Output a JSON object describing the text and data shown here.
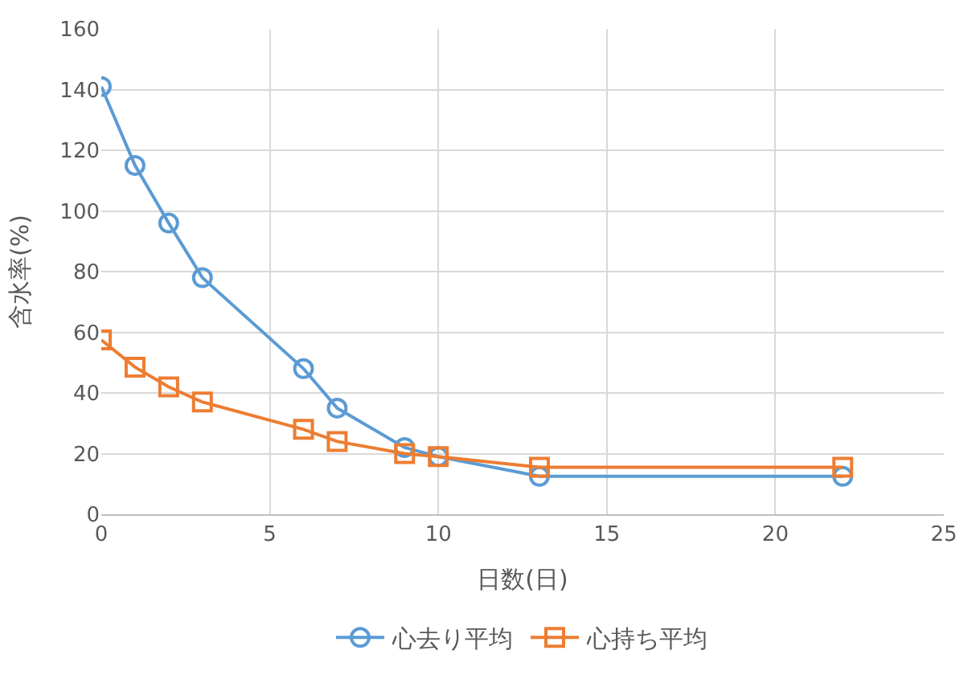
{
  "chart_data": {
    "type": "line",
    "xlabel": "日数(日)",
    "ylabel": "含水率(%)",
    "xlim": [
      0,
      25
    ],
    "xticks": [
      0,
      5,
      10,
      15,
      20,
      25
    ],
    "ylim": [
      0,
      160
    ],
    "yticks": [
      0,
      20,
      40,
      60,
      80,
      100,
      120,
      140,
      160
    ],
    "grid": true,
    "legend": "bottom",
    "line_style": "solid",
    "series": [
      {
        "name": "心去り平均",
        "color": "#5b9bd5",
        "marker": "circle",
        "x": [
          0,
          1,
          2,
          3,
          6,
          7,
          9,
          10,
          13,
          22
        ],
        "values": [
          141,
          115,
          96,
          78,
          48,
          35,
          22,
          19,
          12.5,
          12.5
        ]
      },
      {
        "name": "心持ち平均",
        "color": "#ed7d31",
        "marker": "square",
        "x": [
          0,
          1,
          2,
          3,
          6,
          7,
          9,
          10,
          13,
          22
        ],
        "values": [
          57.5,
          48.5,
          42,
          37,
          28,
          24,
          20,
          19,
          15.5,
          15.5
        ]
      }
    ]
  }
}
